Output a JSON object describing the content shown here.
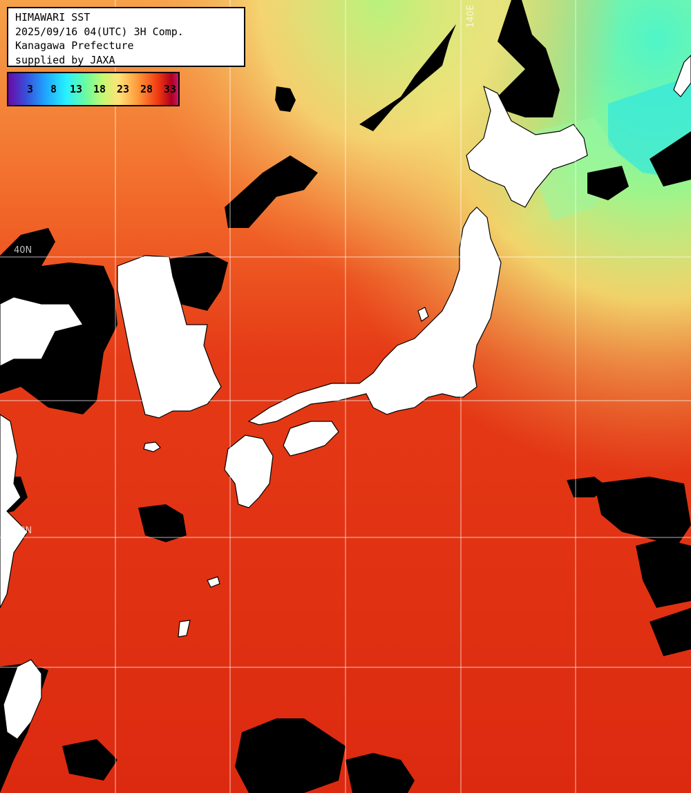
{
  "header": {
    "line1": "HIMAWARI SST",
    "line2": "2025/09/16 04(UTC) 3H Comp.",
    "line3": "Kanagawa Prefecture",
    "line4": "supplied by JAXA"
  },
  "legend": {
    "labels": [
      "3",
      "8",
      "13",
      "18",
      "23",
      "28",
      "33"
    ]
  },
  "grid_labels": {
    "lat_40": "40N",
    "lat_30": "30N",
    "lon_140": "140E"
  },
  "colors": {
    "land": "#ffffff",
    "cloud": "#000000",
    "warm_sea": "#d62a0e",
    "gridline": "#ffffff"
  }
}
